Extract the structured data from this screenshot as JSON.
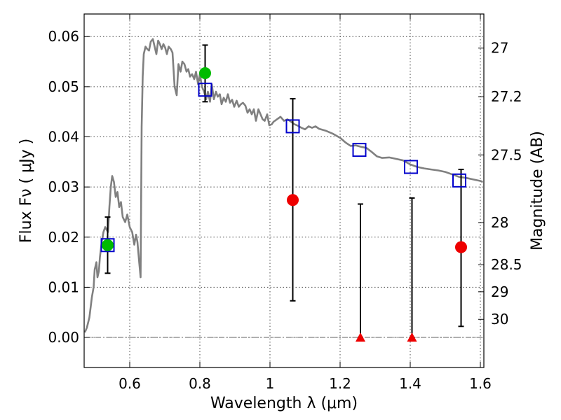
{
  "chart_data": {
    "type": "scatter",
    "xlabel": "Wavelength  λ (μm)",
    "ylabel": "Flux  Fν  ( μJy )",
    "y2label": "Magnitude (AB)",
    "xlim": [
      0.47,
      1.61
    ],
    "ylim": [
      -0.006,
      0.0645
    ],
    "x_ticks": [
      0.6,
      0.8,
      1.0,
      1.2,
      1.4,
      1.6
    ],
    "x_tick_labels": [
      "0.6",
      "0.8",
      "1",
      "1.2",
      "1.4",
      "1.6"
    ],
    "y_ticks": [
      0.0,
      0.01,
      0.02,
      0.03,
      0.04,
      0.05,
      0.06
    ],
    "y_tick_labels": [
      "0.00",
      "0.01",
      "0.02",
      "0.03",
      "0.04",
      "0.05",
      "0.06"
    ],
    "y2_ticks": [
      {
        "label": "27",
        "flux": 0.0577
      },
      {
        "label": "27.2",
        "flux": 0.048
      },
      {
        "label": "27.5",
        "flux": 0.0364
      },
      {
        "label": "28",
        "flux": 0.0229
      },
      {
        "label": "28.5",
        "flux": 0.0145
      },
      {
        "label": "29",
        "flux": 0.0091
      },
      {
        "label": "30",
        "flux": 0.0036
      }
    ],
    "grid": true,
    "colors": {
      "model": "#808080",
      "model_photometry": "#0000cc",
      "green_points": "#00bb00",
      "red_points": "#ee0000",
      "error_bars": "#000000",
      "zero_line": "#606060"
    },
    "series": [
      {
        "kind": "line",
        "points": [
          [
            0.472,
            0.001
          ],
          [
            0.478,
            0.002
          ],
          [
            0.485,
            0.004
          ],
          [
            0.492,
            0.008
          ],
          [
            0.497,
            0.01
          ],
          [
            0.5,
            0.0135
          ],
          [
            0.505,
            0.015
          ],
          [
            0.508,
            0.012
          ],
          [
            0.512,
            0.0132
          ],
          [
            0.515,
            0.016
          ],
          [
            0.52,
            0.019
          ],
          [
            0.525,
            0.021
          ],
          [
            0.53,
            0.022
          ],
          [
            0.538,
            0.021
          ],
          [
            0.542,
            0.026
          ],
          [
            0.546,
            0.03
          ],
          [
            0.55,
            0.0322
          ],
          [
            0.555,
            0.031
          ],
          [
            0.56,
            0.028
          ],
          [
            0.565,
            0.029
          ],
          [
            0.57,
            0.026
          ],
          [
            0.575,
            0.027
          ],
          [
            0.58,
            0.024
          ],
          [
            0.587,
            0.023
          ],
          [
            0.593,
            0.0245
          ],
          [
            0.6,
            0.022
          ],
          [
            0.607,
            0.021
          ],
          [
            0.613,
            0.0185
          ],
          [
            0.618,
            0.0205
          ],
          [
            0.622,
            0.019
          ],
          [
            0.627,
            0.015
          ],
          [
            0.631,
            0.012
          ],
          [
            0.634,
            0.042
          ],
          [
            0.637,
            0.052
          ],
          [
            0.64,
            0.0565
          ],
          [
            0.645,
            0.058
          ],
          [
            0.65,
            0.0575
          ],
          [
            0.655,
            0.0572
          ],
          [
            0.66,
            0.059
          ],
          [
            0.666,
            0.0595
          ],
          [
            0.671,
            0.058
          ],
          [
            0.676,
            0.0565
          ],
          [
            0.681,
            0.0592
          ],
          [
            0.686,
            0.0585
          ],
          [
            0.691,
            0.0575
          ],
          [
            0.696,
            0.0585
          ],
          [
            0.701,
            0.0578
          ],
          [
            0.706,
            0.0565
          ],
          [
            0.711,
            0.058
          ],
          [
            0.717,
            0.0575
          ],
          [
            0.722,
            0.0568
          ],
          [
            0.728,
            0.05
          ],
          [
            0.734,
            0.0483
          ],
          [
            0.739,
            0.0545
          ],
          [
            0.745,
            0.053
          ],
          [
            0.75,
            0.055
          ],
          [
            0.756,
            0.0545
          ],
          [
            0.762,
            0.053
          ],
          [
            0.767,
            0.0535
          ],
          [
            0.772,
            0.052
          ],
          [
            0.778,
            0.0525
          ],
          [
            0.784,
            0.0515
          ],
          [
            0.789,
            0.053
          ],
          [
            0.795,
            0.0505
          ],
          [
            0.8,
            0.0525
          ],
          [
            0.806,
            0.05
          ],
          [
            0.812,
            0.049
          ],
          [
            0.818,
            0.0475
          ],
          [
            0.823,
            0.049
          ],
          [
            0.829,
            0.047
          ],
          [
            0.834,
            0.0505
          ],
          [
            0.84,
            0.0475
          ],
          [
            0.846,
            0.049
          ],
          [
            0.851,
            0.048
          ],
          [
            0.857,
            0.0485
          ],
          [
            0.862,
            0.0465
          ],
          [
            0.868,
            0.0478
          ],
          [
            0.874,
            0.047
          ],
          [
            0.88,
            0.0485
          ],
          [
            0.886,
            0.0468
          ],
          [
            0.892,
            0.0474
          ],
          [
            0.898,
            0.046
          ],
          [
            0.905,
            0.0472
          ],
          [
            0.911,
            0.046
          ],
          [
            0.917,
            0.0465
          ],
          [
            0.923,
            0.0468
          ],
          [
            0.93,
            0.0462
          ],
          [
            0.936,
            0.0448
          ],
          [
            0.942,
            0.0455
          ],
          [
            0.948,
            0.0445
          ],
          [
            0.954,
            0.0455
          ],
          [
            0.96,
            0.0432
          ],
          [
            0.967,
            0.0455
          ],
          [
            0.973,
            0.0445
          ],
          [
            0.979,
            0.0435
          ],
          [
            0.985,
            0.0432
          ],
          [
            0.992,
            0.0445
          ],
          [
            0.998,
            0.0423
          ],
          [
            1.005,
            0.0425
          ],
          [
            1.01,
            0.043
          ],
          [
            1.02,
            0.0435
          ],
          [
            1.03,
            0.044
          ],
          [
            1.04,
            0.0432
          ],
          [
            1.05,
            0.0435
          ],
          [
            1.06,
            0.043
          ],
          [
            1.07,
            0.0425
          ],
          [
            1.08,
            0.0422
          ],
          [
            1.09,
            0.0418
          ],
          [
            1.1,
            0.0415
          ],
          [
            1.11,
            0.0421
          ],
          [
            1.12,
            0.0418
          ],
          [
            1.13,
            0.0421
          ],
          [
            1.14,
            0.0416
          ],
          [
            1.16,
            0.0412
          ],
          [
            1.18,
            0.0406
          ],
          [
            1.2,
            0.0398
          ],
          [
            1.215,
            0.0389
          ],
          [
            1.23,
            0.0382
          ],
          [
            1.245,
            0.0383
          ],
          [
            1.26,
            0.038
          ],
          [
            1.275,
            0.0378
          ],
          [
            1.29,
            0.037
          ],
          [
            1.305,
            0.0361
          ],
          [
            1.32,
            0.0358
          ],
          [
            1.34,
            0.0359
          ],
          [
            1.36,
            0.0356
          ],
          [
            1.38,
            0.0353
          ],
          [
            1.4,
            0.0345
          ],
          [
            1.42,
            0.034
          ],
          [
            1.44,
            0.0337
          ],
          [
            1.46,
            0.0335
          ],
          [
            1.48,
            0.0333
          ],
          [
            1.5,
            0.033
          ],
          [
            1.52,
            0.0325
          ],
          [
            1.54,
            0.032
          ],
          [
            1.56,
            0.0318
          ],
          [
            1.58,
            0.0315
          ],
          [
            1.6,
            0.0312
          ],
          [
            1.607,
            0.031
          ]
        ]
      },
      {
        "kind": "open-square",
        "points": [
          [
            0.537,
            0.0184
          ],
          [
            0.815,
            0.0494
          ],
          [
            1.065,
            0.0421
          ],
          [
            1.255,
            0.0374
          ],
          [
            1.402,
            0.034
          ],
          [
            1.54,
            0.0313
          ]
        ]
      },
      {
        "kind": "filled-circle",
        "color_key": "green_points",
        "points": [
          [
            0.537,
            0.0184
          ],
          [
            0.815,
            0.0527
          ]
        ]
      },
      {
        "kind": "filled-circle",
        "color_key": "red_points",
        "points": [
          [
            1.065,
            0.0274
          ],
          [
            1.545,
            0.018
          ]
        ]
      },
      {
        "kind": "upper-limit-triangle",
        "color_key": "red_points",
        "points": [
          [
            1.258,
            0.0
          ],
          [
            1.405,
            0.0
          ]
        ]
      },
      {
        "kind": "error-bar",
        "bars": [
          {
            "x": 0.537,
            "low": 0.0128,
            "high": 0.024
          },
          {
            "x": 0.815,
            "low": 0.047,
            "high": 0.0583
          },
          {
            "x": 1.065,
            "low": 0.0073,
            "high": 0.0476
          },
          {
            "x": 1.258,
            "low": 0.0,
            "high": 0.0266
          },
          {
            "x": 1.405,
            "low": 0.0,
            "high": 0.0278
          },
          {
            "x": 1.545,
            "low": 0.0022,
            "high": 0.0335
          }
        ]
      }
    ]
  }
}
